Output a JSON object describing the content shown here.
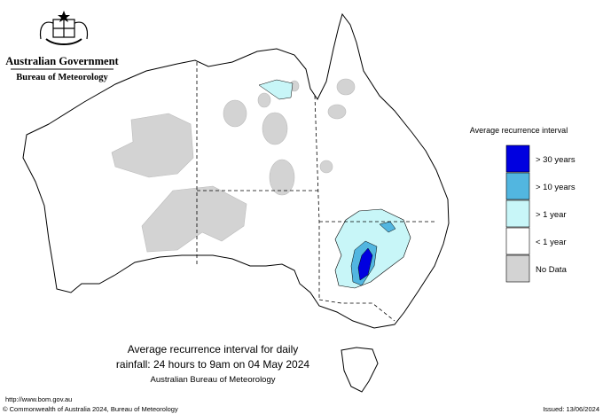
{
  "header": {
    "government": "Australian Government",
    "agency": "Bureau of Meteorology"
  },
  "legend": {
    "title": "Average recurrence interval",
    "items": [
      {
        "label": "> 30 years",
        "color": "#0000e0"
      },
      {
        "label": "> 10 years",
        "color": "#52b6e0"
      },
      {
        "label": "> 1 year",
        "color": "#c8f6f8"
      },
      {
        "label": "< 1 year",
        "color": "#ffffff"
      },
      {
        "label": "No Data",
        "color": "#d3d3d3"
      }
    ]
  },
  "caption": {
    "line1": "Average recurrence interval for daily",
    "line2": "rainfall: 24 hours to 9am on 04 May 2024",
    "line3": "Australian Bureau of Meteorology"
  },
  "footer": {
    "url": "http://www.bom.gov.au",
    "copyright": "© Commonwealth of Australia 2024, Bureau of Meteorology",
    "issued": "Issued: 13/06/2024"
  }
}
